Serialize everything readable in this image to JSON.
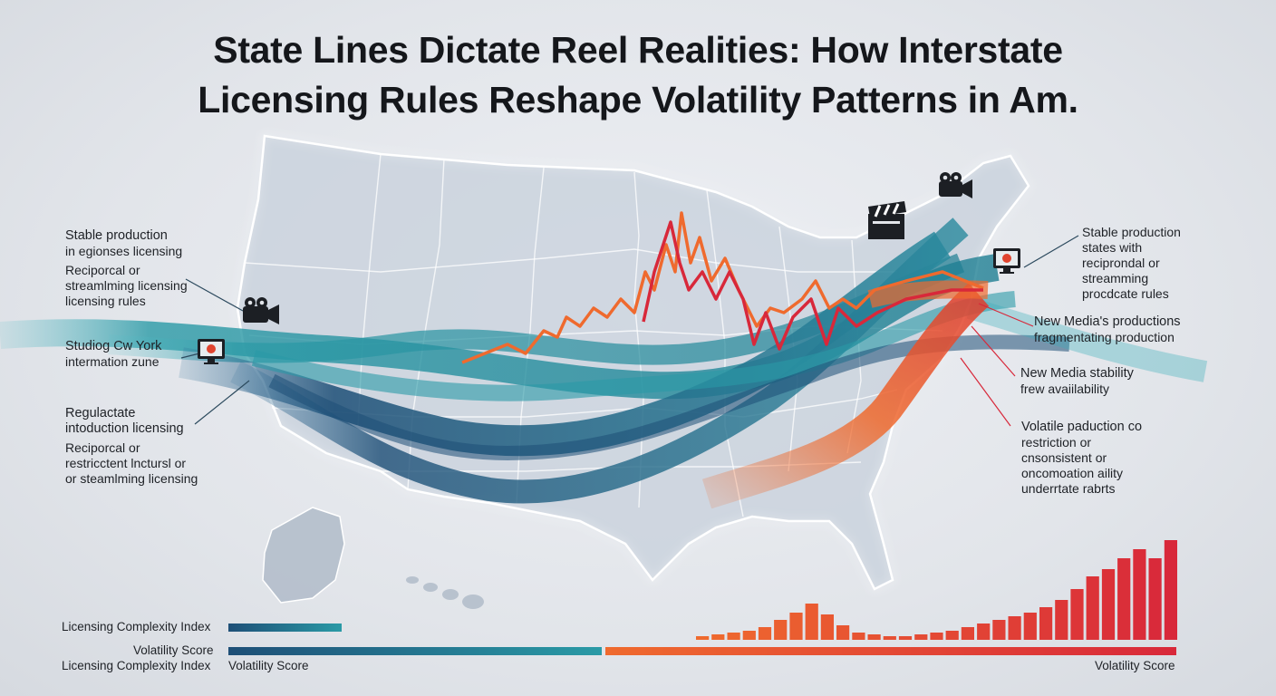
{
  "title": {
    "line1": "State Lines Dictate Reel Realities: How Interstate",
    "line2": "Licensing Rules Reshape Volatility Patterns in Am."
  },
  "left_labels": [
    {
      "lines": [
        "Stable production",
        "in egionses licensing"
      ]
    },
    {
      "lines": [
        "Reciporcal or",
        "streamlming licensing",
        "licensing rules"
      ]
    },
    {
      "lines": [
        "Studiog Cw York",
        "intermation zune"
      ]
    },
    {
      "lines": [
        "Regulactate",
        "intoduction licensing"
      ]
    },
    {
      "lines": [
        "Reciporcal or",
        "restricctent lnctursl or",
        "or steamlming licensing"
      ]
    }
  ],
  "right_labels": [
    {
      "lines": [
        "Stable production",
        "states with",
        "reciprondal or",
        "streamming",
        "procdcate rules"
      ]
    },
    {
      "lines": [
        "New Media's productions",
        "fragmentating production"
      ]
    },
    {
      "lines": [
        "New Media stability",
        "frew avaiilability"
      ]
    },
    {
      "lines": [
        "Volatile paduction co",
        "restriction or",
        "cnsonsistent or",
        "oncomoation aility",
        "underrtate rabrts"
      ]
    }
  ],
  "icons": [
    "film-camera-icon",
    "clapperboard-icon",
    "monitor-icon"
  ],
  "bottom": {
    "label_complexity_top": "Licensing Complexity Index",
    "label_volatility_mid": "Volatility Score",
    "label_complexity_bottom": "Licensing Complexity Index",
    "label_volatility_bottom_left": "Volatility Score",
    "label_volatility_bottom_right": "Volatility Score"
  },
  "colors": {
    "teal": "#2a9aa6",
    "navy": "#1e4f77",
    "orange": "#ef6a2e",
    "red": "#d8283a"
  }
}
